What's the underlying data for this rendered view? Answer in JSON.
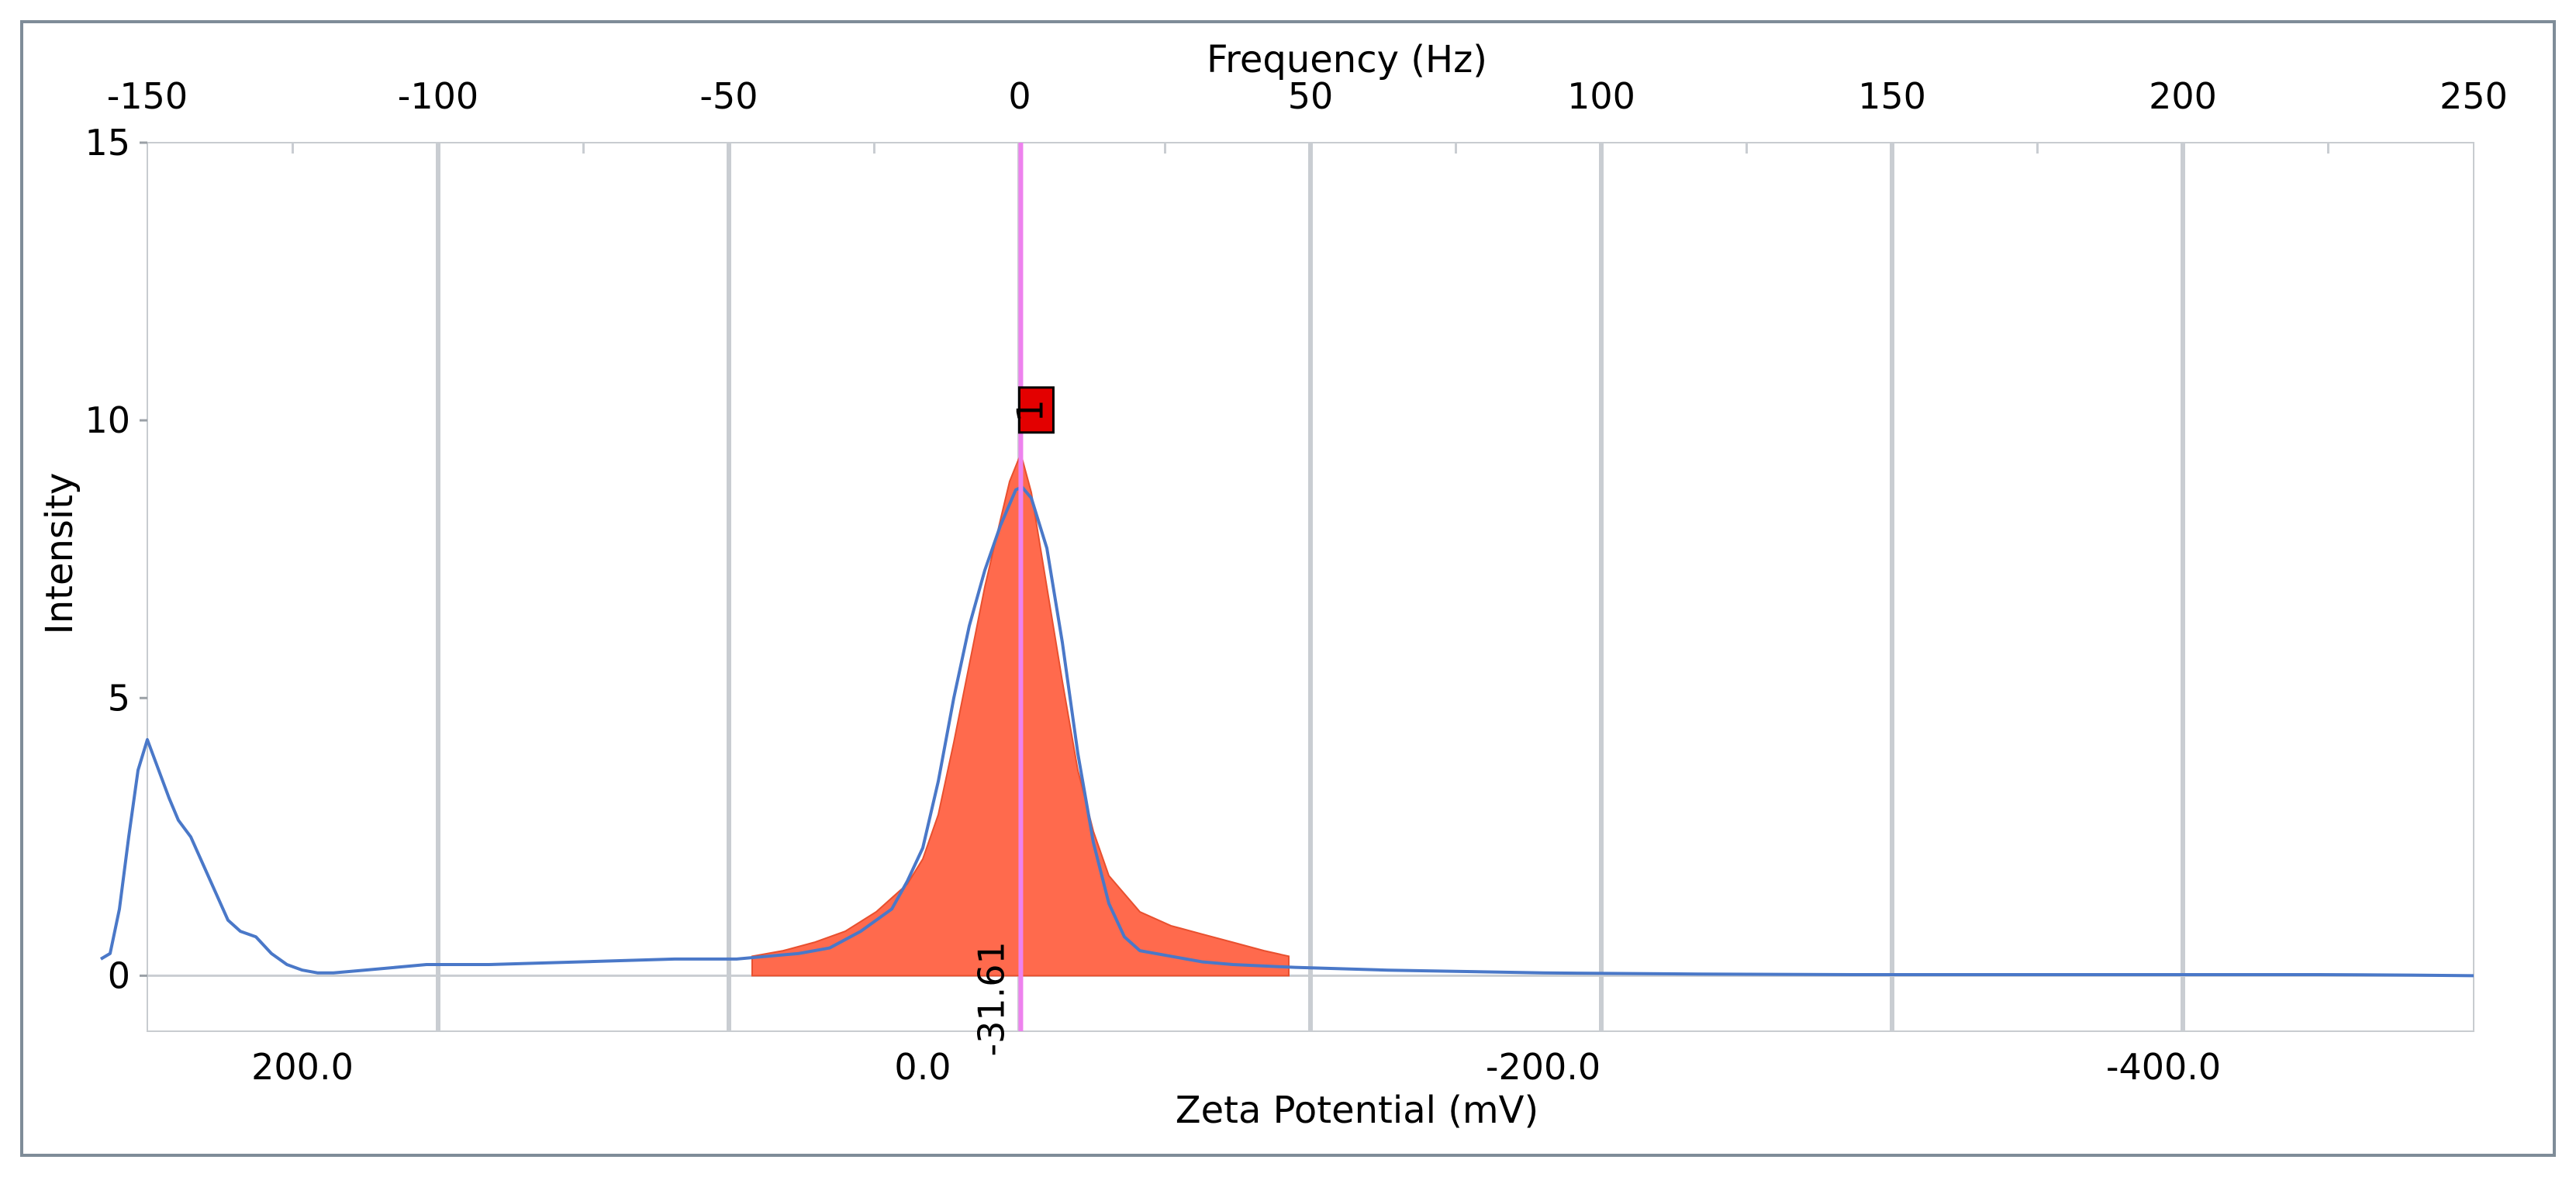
{
  "chart_data": {
    "type": "line",
    "xlabel": "Zeta Potential (mV)",
    "x2label": "Frequency (Hz)",
    "ylabel": "Intensity",
    "xlim": [
      250,
      -500
    ],
    "x2lim": [
      -150,
      250
    ],
    "ylim": [
      -1.0,
      15
    ],
    "x_ticks": [
      200,
      0,
      -200,
      -400
    ],
    "x_tick_labels": [
      "200.0",
      "0.0",
      "-200.0",
      "-400.0"
    ],
    "x2_ticks": [
      -150,
      -100,
      -50,
      0,
      50,
      100,
      150,
      200,
      250
    ],
    "x2_tick_labels": [
      "-150",
      "-100",
      "-50",
      "0",
      "50",
      "100",
      "150",
      "200",
      "250"
    ],
    "y_ticks": [
      0,
      5,
      10,
      15
    ],
    "y_tick_labels": [
      "0",
      "5",
      "10",
      "15"
    ],
    "grid": "vertical",
    "legend": "none",
    "series": [
      {
        "style": "line",
        "x": [
          265,
          262,
          259,
          256,
          253,
          250,
          247,
          243,
          240,
          236,
          232,
          228,
          224,
          220,
          215,
          210,
          205,
          200,
          195,
          190,
          180,
          170,
          160,
          140,
          110,
          80,
          60,
          40,
          30,
          20,
          10,
          5,
          0,
          -5,
          -10,
          -15,
          -20,
          -25,
          -30,
          -32,
          -35,
          -40,
          -45,
          -50,
          -55,
          -60,
          -65,
          -70,
          -80,
          -90,
          -100,
          -120,
          -150,
          -200,
          -250,
          -300,
          -350,
          -400,
          -450,
          -480,
          -500
        ],
        "y": [
          0.3,
          0.4,
          1.2,
          2.5,
          3.7,
          4.25,
          3.8,
          3.2,
          2.8,
          2.5,
          2.0,
          1.5,
          1.0,
          0.8,
          0.7,
          0.4,
          0.2,
          0.1,
          0.05,
          0.05,
          0.1,
          0.15,
          0.2,
          0.2,
          0.25,
          0.3,
          0.3,
          0.4,
          0.5,
          0.8,
          1.2,
          1.7,
          2.3,
          3.5,
          5.0,
          6.3,
          7.3,
          8.1,
          8.75,
          8.8,
          8.6,
          7.7,
          6.0,
          4.0,
          2.4,
          1.3,
          0.7,
          0.45,
          0.35,
          0.25,
          0.2,
          0.15,
          0.1,
          0.05,
          0.03,
          0.02,
          0.02,
          0.02,
          0.02,
          0.01,
          0.0
        ],
        "color": "#4a78c8"
      },
      {
        "style": "area",
        "x": [
          55,
          45,
          35,
          25,
          15,
          5,
          0,
          -5,
          -10,
          -15,
          -20,
          -25,
          -28,
          -31.61,
          -35,
          -40,
          -45,
          -50,
          -55,
          -60,
          -70,
          -80,
          -90,
          -100,
          -110,
          -118
        ],
        "y": [
          0.35,
          0.45,
          0.6,
          0.8,
          1.15,
          1.65,
          2.1,
          2.9,
          4.2,
          5.6,
          7.0,
          8.2,
          8.9,
          9.4,
          8.7,
          7.0,
          5.3,
          3.7,
          2.6,
          1.8,
          1.15,
          0.9,
          0.75,
          0.6,
          0.45,
          0.35
        ],
        "color": "#ff6a4d"
      }
    ],
    "marker": {
      "x": -31.61,
      "label": "-31.61",
      "peak_label": "1",
      "peak_y": 10.2,
      "line_color": "#ee82ee",
      "box_color": "#e30000"
    }
  }
}
